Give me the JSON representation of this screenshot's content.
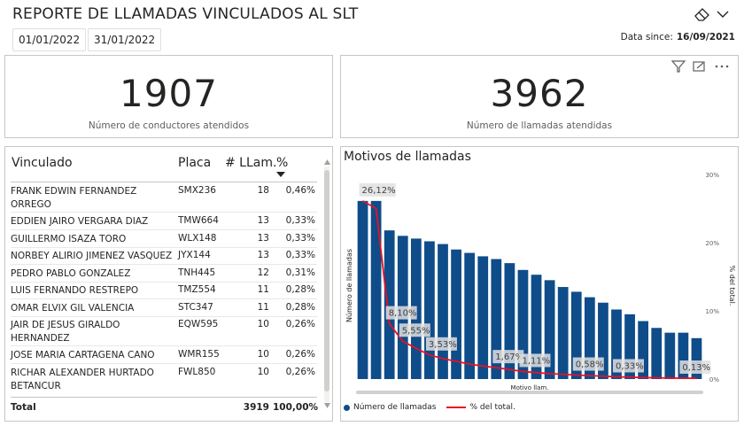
{
  "report": {
    "title": "REPORTE DE LLAMADAS VINCULADOS AL SLT",
    "date_start": "01/01/2022",
    "date_end": "31/01/2022",
    "data_since_label": "Data since:",
    "data_since_value": "16/09/2021"
  },
  "kpis": [
    {
      "value": "1907",
      "label": "Número de conductores atendidos"
    },
    {
      "value": "3962",
      "label": "Número de llamadas atendidas"
    }
  ],
  "table": {
    "headers": {
      "vinculado": "Vinculado",
      "placa": "Placa",
      "llam": "# LLam.",
      "pct": "%"
    },
    "rows": [
      {
        "name": "FRANK EDWIN FERNANDEZ ORREGO",
        "placa": "SMX236",
        "llam": "18",
        "pct": "0,46%"
      },
      {
        "name": "EDDIEN JAIRO VERGARA DIAZ",
        "placa": "TMW664",
        "llam": "13",
        "pct": "0,33%"
      },
      {
        "name": "GUILLERMO ISAZA TORO",
        "placa": "WLX148",
        "llam": "13",
        "pct": "0,33%"
      },
      {
        "name": "NORBEY ALIRIO JIMENEZ VASQUEZ",
        "placa": "JYX144",
        "llam": "13",
        "pct": "0,33%"
      },
      {
        "name": "PEDRO PABLO GONZALEZ",
        "placa": "TNH445",
        "llam": "12",
        "pct": "0,31%"
      },
      {
        "name": "LUIS FERNANDO RESTREPO",
        "placa": "TMZ554",
        "llam": "11",
        "pct": "0,28%"
      },
      {
        "name": "OMAR ELVIX GIL VALENCIA",
        "placa": "STC347",
        "llam": "11",
        "pct": "0,28%"
      },
      {
        "name": "JAIR DE JESUS GIRALDO HERNANDEZ",
        "placa": "EQW595",
        "llam": "10",
        "pct": "0,26%"
      },
      {
        "name": "JOSE MARIA CARTAGENA CANO",
        "placa": "WMR155",
        "llam": "10",
        "pct": "0,26%"
      },
      {
        "name": "RICHAR ALEXANDER HURTADO BETANCUR",
        "placa": "FWL850",
        "llam": "10",
        "pct": "0,26%"
      }
    ],
    "total": {
      "label": "Total",
      "llam": "3919",
      "pct": "100,00%"
    }
  },
  "chart_data": {
    "type": "bar",
    "title": "Motivos de llamadas",
    "xlabel": "Motivo llam.",
    "ylabel": "Número de llamadas",
    "y2label": "% del total.",
    "y2lim": [
      0,
      30
    ],
    "y2ticks": [
      "0%",
      "10%",
      "20%",
      "30%"
    ],
    "series": [
      {
        "name": "Número de llamadas",
        "type": "bar",
        "color": "#0f4c8a",
        "values_pct": [
          26.12,
          26.12,
          21.8,
          21.0,
          20.6,
          20.2,
          19.8,
          19.0,
          18.5,
          18.0,
          17.6,
          17.0,
          16.0,
          15.3,
          14.5,
          13.5,
          12.8,
          12.0,
          11.2,
          10.2,
          9.5,
          8.5,
          7.5,
          6.8,
          6.8,
          6.0
        ]
      },
      {
        "name": "% del total.",
        "type": "line",
        "color": "#e81123",
        "values": [
          26.12,
          25.0,
          8.1,
          5.55,
          4.5,
          3.53,
          3.0,
          2.6,
          2.2,
          1.9,
          1.67,
          1.4,
          1.11,
          0.95,
          0.8,
          0.7,
          0.58,
          0.5,
          0.42,
          0.33,
          0.28,
          0.22,
          0.18,
          0.15,
          0.13,
          0.12
        ]
      }
    ],
    "annotations": [
      "26,12%",
      "8,10%",
      "5,55%",
      "3,53%",
      "1,67%",
      "1,11%",
      "0,58%",
      "0,33%",
      "0,13%"
    ]
  },
  "colors": {
    "accent": "#0f4c8a",
    "line": "#e81123"
  },
  "icons": [
    "eraser-icon",
    "chevron-down-icon",
    "filter-icon",
    "focus-mode-icon",
    "more-options-icon",
    "sort-desc-icon"
  ]
}
